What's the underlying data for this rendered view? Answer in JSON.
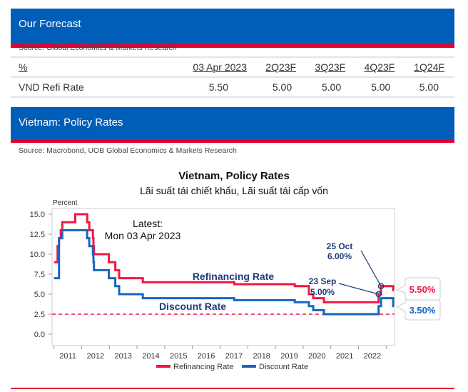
{
  "forecast": {
    "title": "Our Forecast",
    "source": "Source: Global Economics & Markets Research",
    "columns": [
      "%",
      "03 Apr 2023",
      "2Q23F",
      "3Q23F",
      "4Q23F",
      "1Q24F"
    ],
    "rows": [
      {
        "label": "VND Refi Rate",
        "values": [
          "5.50",
          "5.00",
          "5.00",
          "5.00",
          "5.00"
        ]
      }
    ]
  },
  "policy": {
    "title": "Vietnam: Policy Rates",
    "source": "Source: Macrobond, UOB Global Economics & Markets Research"
  },
  "colors": {
    "brand_blue": "#005EB8",
    "brand_red": "#E8002D",
    "refi": "#F5153F",
    "discount": "#1565C0",
    "annotation": "#1F3A7A"
  },
  "chart_data": {
    "type": "line",
    "step": true,
    "title": "Vietnam, Policy Rates",
    "subtitle": "Lãi suất tái chiết khấu, Lãi suất tái cấp vốn",
    "ylabel": "Percent",
    "ylim": [
      0,
      15
    ],
    "yticks": [
      "0.0",
      "2.5",
      "5.0",
      "7.5",
      "10.0",
      "12.5",
      "15.0"
    ],
    "xticks": [
      "2011",
      "2012",
      "2013",
      "2014",
      "2015",
      "2016",
      "2017",
      "2018",
      "2019",
      "2020",
      "2021",
      "2022"
    ],
    "grid": false,
    "legend_position": "bottom",
    "reference_line": {
      "value": 2.5,
      "style": "dashed",
      "color": "#F5153F"
    },
    "latest_note": {
      "line1": "Latest:",
      "line2": "Mon 03 Apr 2023"
    },
    "series": [
      {
        "name": "Refinancing Rate",
        "inline_label": "Refinancing Rate",
        "end_label": "5.50%",
        "points": [
          [
            "2011-01-01",
            9
          ],
          [
            "2011-02-17",
            11
          ],
          [
            "2011-03-08",
            12
          ],
          [
            "2011-03-31",
            13
          ],
          [
            "2011-04-20",
            14
          ],
          [
            "2011-10-08",
            15
          ],
          [
            "2012-03-13",
            14
          ],
          [
            "2012-04-10",
            13
          ],
          [
            "2012-05-28",
            12
          ],
          [
            "2012-06-04",
            11
          ],
          [
            "2012-06-11",
            10
          ],
          [
            "2012-12-24",
            9
          ],
          [
            "2013-03-20",
            8
          ],
          [
            "2013-05-10",
            7
          ],
          [
            "2014-03-18",
            6.5
          ],
          [
            "2017-07-07",
            6.25
          ],
          [
            "2019-09-13",
            6
          ],
          [
            "2020-03-17",
            5
          ],
          [
            "2020-05-13",
            4.5
          ],
          [
            "2020-10-01",
            4
          ],
          [
            "2022-09-23",
            5
          ],
          [
            "2022-10-25",
            6
          ],
          [
            "2023-04-03",
            5.5
          ]
        ]
      },
      {
        "name": "Discount Rate",
        "inline_label": "Discount Rate",
        "end_label": "3.50%",
        "points": [
          [
            "2011-01-01",
            7
          ],
          [
            "2011-03-08",
            12
          ],
          [
            "2011-04-20",
            13
          ],
          [
            "2012-03-13",
            12
          ],
          [
            "2012-04-10",
            11
          ],
          [
            "2012-05-28",
            10
          ],
          [
            "2012-06-04",
            9
          ],
          [
            "2012-06-11",
            8
          ],
          [
            "2012-12-24",
            7
          ],
          [
            "2013-03-20",
            6
          ],
          [
            "2013-05-10",
            5
          ],
          [
            "2014-03-18",
            4.5
          ],
          [
            "2017-07-07",
            4.25
          ],
          [
            "2019-09-13",
            4
          ],
          [
            "2020-03-17",
            3.5
          ],
          [
            "2020-05-13",
            3
          ],
          [
            "2020-10-01",
            2.5
          ],
          [
            "2022-09-23",
            3.5
          ],
          [
            "2022-10-25",
            4.5
          ],
          [
            "2023-04-03",
            3.5
          ]
        ]
      }
    ],
    "annotations": [
      {
        "date": "2022-09-23",
        "value": 5,
        "line1": "23 Sep",
        "line2": "5.00%"
      },
      {
        "date": "2022-10-25",
        "value": 6,
        "line1": "25 Oct",
        "line2": "6.00%"
      }
    ]
  }
}
